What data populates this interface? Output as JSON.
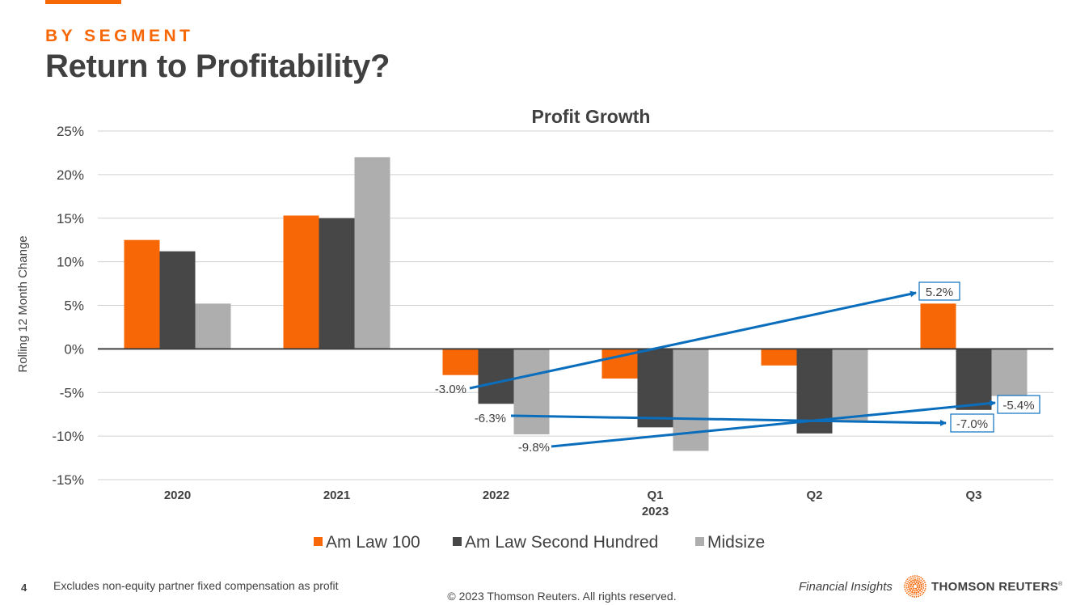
{
  "header": {
    "eyebrow": "BY SEGMENT",
    "title": "Return to Profitability?"
  },
  "colors": {
    "accent": "#f76705",
    "am_law_100": "#f76705",
    "am_law_second_hundred": "#474747",
    "midsize": "#aeaeae",
    "annotation": "#0a6ebd",
    "text": "#404040"
  },
  "chart_data": {
    "type": "bar",
    "title": "Profit Growth",
    "xlabel": "",
    "ylabel": "Rolling 12 Month Change",
    "ylim": [
      -15,
      25
    ],
    "yticks": [
      25,
      20,
      15,
      10,
      5,
      0,
      -5,
      -10,
      -15
    ],
    "ytick_labels": [
      "25%",
      "20%",
      "15%",
      "10%",
      "5%",
      "0%",
      "-5%",
      "-10%",
      "-15%"
    ],
    "grid": true,
    "categories": [
      "2020",
      "2021",
      "2022",
      "Q1",
      "Q2",
      "Q3"
    ],
    "category_sublabels": [
      "",
      "",
      "",
      "2023",
      "",
      ""
    ],
    "series": [
      {
        "name": "Am Law 100",
        "color": "#f76705",
        "values": [
          12.5,
          15.3,
          -3.0,
          -3.4,
          -1.9,
          5.2
        ]
      },
      {
        "name": "Am Law Second Hundred",
        "color": "#474747",
        "values": [
          11.2,
          15.0,
          -6.3,
          -9.0,
          -9.7,
          -7.0
        ]
      },
      {
        "name": "Midsize",
        "color": "#aeaeae",
        "values": [
          5.2,
          22.0,
          -9.8,
          -11.7,
          -8.3,
          -5.4
        ]
      }
    ],
    "legend": "bottom",
    "annotations": [
      {
        "from_label": "-3.0%",
        "to_label": "5.2%",
        "series": "Am Law 100",
        "from_category": "2022",
        "to_category": "Q3"
      },
      {
        "from_label": "-6.3%",
        "to_label": "-7.0%",
        "series": "Am Law Second Hundred",
        "from_category": "2022",
        "to_category": "Q3"
      },
      {
        "from_label": "-9.8%",
        "to_label": "-5.4%",
        "series": "Midsize",
        "from_category": "2022",
        "to_category": "Q3"
      }
    ]
  },
  "footer": {
    "page_number": "4",
    "note": "Excludes non-equity partner fixed compensation as profit",
    "copyright": "© 2023 Thomson Reuters. All rights reserved.",
    "section": "Financial Insights",
    "brand": "THOMSON REUTERS",
    "brand_mark": "®",
    "logo_icon": "thomson-reuters-dot-sphere"
  }
}
